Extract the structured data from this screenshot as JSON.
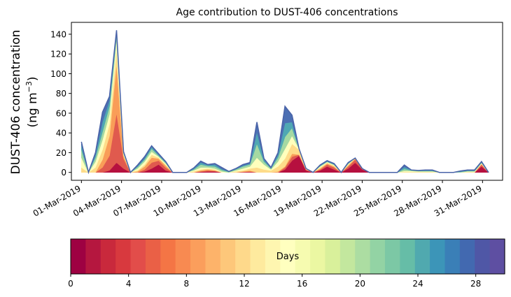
{
  "chart_data": {
    "type": "area",
    "stacked": true,
    "title": "Age contribution to DUST-406 concentrations",
    "ylabel_line1": "DUST-406 concentration",
    "ylabel_line2": "(ng m",
    "ylabel_unit_exp": "−3",
    "ylabel_close": ")",
    "xlabel": "",
    "ylim": [
      -8,
      152
    ],
    "xlim": [
      -1,
      42
    ],
    "yticks": [
      0,
      20,
      40,
      60,
      80,
      100,
      120,
      140
    ],
    "xticks": [
      {
        "x": 0,
        "label": "01-Mar-2019"
      },
      {
        "x": 4,
        "label": "04-Mar-2019"
      },
      {
        "x": 8,
        "label": "07-Mar-2019"
      },
      {
        "x": 12,
        "label": "10-Mar-2019"
      },
      {
        "x": 16,
        "label": "13-Mar-2019"
      },
      {
        "x": 20,
        "label": "16-Mar-2019"
      },
      {
        "x": 24,
        "label": "19-Mar-2019"
      },
      {
        "x": 28,
        "label": "22-Mar-2019"
      },
      {
        "x": 32,
        "label": "25-Mar-2019"
      },
      {
        "x": 36,
        "label": "28-Mar-2019"
      },
      {
        "x": 40,
        "label": "31-Mar-2019"
      }
    ],
    "x": [
      0,
      0.7,
      1.4,
      2.1,
      2.8,
      3.5,
      4.2,
      4.9,
      5.6,
      6.3,
      7.0,
      7.7,
      8.4,
      9.1,
      9.8,
      10.5,
      11.2,
      11.9,
      12.6,
      13.3,
      14.0,
      14.7,
      15.4,
      16.1,
      16.8,
      17.5,
      18.2,
      18.9,
      19.6,
      20.3,
      21.0,
      21.7,
      22.4,
      23.1,
      23.8,
      24.5,
      25.2,
      25.9,
      26.6,
      27.3,
      28.0,
      28.7,
      29.4,
      30.1,
      30.8,
      31.5,
      32.2,
      32.9,
      33.6,
      34.3,
      35.0,
      35.7,
      36.4,
      37.1,
      37.8,
      38.5,
      39.2,
      39.9,
      40.6
    ],
    "series_groups": [
      {
        "name": "Days 0-4",
        "values": [
          0,
          0,
          0,
          0,
          2,
          10,
          4,
          0,
          0,
          1,
          4,
          8,
          2,
          0,
          0,
          0,
          0,
          0.5,
          1,
          1,
          0,
          0,
          0,
          0.2,
          0.5,
          0,
          0,
          0,
          0,
          3,
          12,
          17,
          2,
          0,
          2,
          6,
          3,
          0,
          4,
          10,
          3,
          0,
          0,
          0,
          0,
          0,
          0,
          0,
          0,
          0,
          0,
          0,
          0,
          0,
          0,
          0,
          0,
          6,
          0
        ]
      },
      {
        "name": "Days 4-8",
        "values": [
          0,
          0,
          0,
          5,
          15,
          50,
          10,
          0,
          0,
          2,
          6,
          4,
          3,
          0,
          0,
          0,
          0,
          0.5,
          1,
          0.5,
          0,
          0,
          0,
          0.3,
          0.5,
          0,
          0,
          0,
          0,
          2,
          4,
          1,
          1,
          0,
          1,
          2,
          2,
          0,
          2,
          3,
          1,
          0,
          0,
          0,
          0,
          0,
          0,
          0,
          0,
          0,
          0,
          0,
          0,
          0,
          0,
          0,
          0,
          2,
          0
        ]
      },
      {
        "name": "Days 8-12",
        "values": [
          0,
          0,
          0,
          8,
          20,
          50,
          3,
          0,
          1,
          3,
          5,
          2,
          2,
          0,
          0,
          0,
          0,
          1,
          1,
          0.5,
          0,
          0,
          0,
          0.5,
          1,
          0,
          0,
          0,
          1,
          1,
          3,
          0,
          0,
          0,
          1,
          1,
          1,
          0,
          1,
          1,
          0,
          0,
          0,
          0,
          0,
          0,
          0,
          0,
          0,
          0,
          0,
          0,
          0,
          0,
          0,
          0,
          0,
          0.5,
          0
        ]
      },
      {
        "name": "Days 12-16",
        "values": [
          5,
          0,
          5,
          10,
          12,
          15,
          1,
          0,
          1,
          2,
          3,
          1,
          1,
          0,
          0,
          0,
          1,
          1,
          1,
          1,
          0,
          0,
          1,
          1,
          2,
          5,
          3,
          2,
          5,
          8,
          10,
          5,
          1,
          0,
          1,
          1,
          1,
          0,
          1,
          0.5,
          0,
          0,
          0,
          0,
          0,
          0,
          0.5,
          0.5,
          0.5,
          0.5,
          0.5,
          0,
          0,
          0,
          0,
          0.5,
          0.5,
          0.5,
          0
        ]
      },
      {
        "name": "Days 16-20",
        "values": [
          10,
          0,
          6,
          10,
          10,
          10,
          1,
          0,
          2,
          3,
          3,
          1,
          1,
          0,
          0,
          0,
          1,
          2,
          1,
          1,
          1,
          0,
          1,
          2,
          2,
          10,
          5,
          1,
          5,
          10,
          8,
          1,
          0,
          0,
          1,
          0.5,
          0.5,
          0,
          0.5,
          0,
          0,
          0,
          0,
          0,
          0,
          0,
          1,
          1,
          0.5,
          0.5,
          0.5,
          0,
          0,
          0,
          0,
          0.5,
          0.5,
          0.5,
          0
        ]
      },
      {
        "name": "Days 20-24",
        "values": [
          8,
          0,
          4,
          8,
          8,
          4,
          1,
          0,
          1.5,
          2,
          3,
          1,
          1,
          0,
          0,
          0,
          1,
          3,
          1.5,
          2,
          1.5,
          0.5,
          1,
          2,
          2,
          14,
          3,
          1,
          4,
          12,
          8,
          0,
          0,
          0,
          0.5,
          0.5,
          0.5,
          0,
          0.5,
          0,
          0,
          0,
          0,
          0,
          0,
          0,
          2,
          0.5,
          0.5,
          0.5,
          0.5,
          0,
          0,
          0,
          0.5,
          0.5,
          0.5,
          0.5,
          0
        ]
      },
      {
        "name": "Days 24-28",
        "values": [
          5,
          0,
          3,
          10,
          6,
          3,
          0.5,
          0,
          1,
          1.5,
          2,
          1,
          0.5,
          0,
          0,
          0,
          1,
          2,
          1,
          2,
          1,
          0.5,
          0.5,
          1,
          1,
          12,
          2,
          0.5,
          3,
          14,
          6,
          0,
          0,
          0,
          0.5,
          0.5,
          0.5,
          0,
          0.5,
          0,
          0,
          0,
          0,
          0,
          0,
          0,
          2,
          0.5,
          0.5,
          0.5,
          0.5,
          0,
          0,
          0,
          0.5,
          0.5,
          0.5,
          0.5,
          0
        ]
      },
      {
        "name": "Days 28-30",
        "values": [
          3,
          0,
          2,
          10,
          4,
          2,
          0.5,
          0,
          1,
          1.5,
          1,
          1,
          0.5,
          0,
          0,
          0,
          0.5,
          1.5,
          0.5,
          1,
          1.5,
          0,
          0.5,
          1,
          1,
          10,
          1,
          0.5,
          2,
          17,
          7,
          0,
          0,
          0,
          0.5,
          0.5,
          0.5,
          0,
          0.5,
          0,
          0,
          0,
          0,
          0,
          0,
          0,
          2,
          0,
          0,
          0.5,
          0.5,
          0,
          0,
          0,
          0.5,
          0.5,
          0.5,
          0.5,
          0
        ]
      }
    ],
    "group_colors": [
      "#b6103f",
      "#e05a4e",
      "#f99d58",
      "#fedc8a",
      "#ffffbd",
      "#a5d9a2",
      "#4fa8b3",
      "#4c6fb3"
    ],
    "colorbar": {
      "label": "Days",
      "min": 0,
      "max": 30,
      "ticks": [
        0,
        4,
        8,
        12,
        16,
        20,
        24,
        28
      ],
      "colors": [
        "#9e0142",
        "#b5173f",
        "#c9293c",
        "#d8393e",
        "#e24d4a",
        "#ea6046",
        "#f47545",
        "#f88a51",
        "#fb9e5c",
        "#fdb36a",
        "#fdc77a",
        "#fed98b",
        "#feea9e",
        "#fef6b0",
        "#ffffbf",
        "#f6fbb0",
        "#ebf7a2",
        "#d9f09b",
        "#c3e79e",
        "#acdda2",
        "#93d3a4",
        "#7cc8a5",
        "#66bda7",
        "#50a9af",
        "#3c95b8",
        "#3a7fb7",
        "#4269b0",
        "#4f57a6",
        "#5e4fa2"
      ]
    }
  }
}
